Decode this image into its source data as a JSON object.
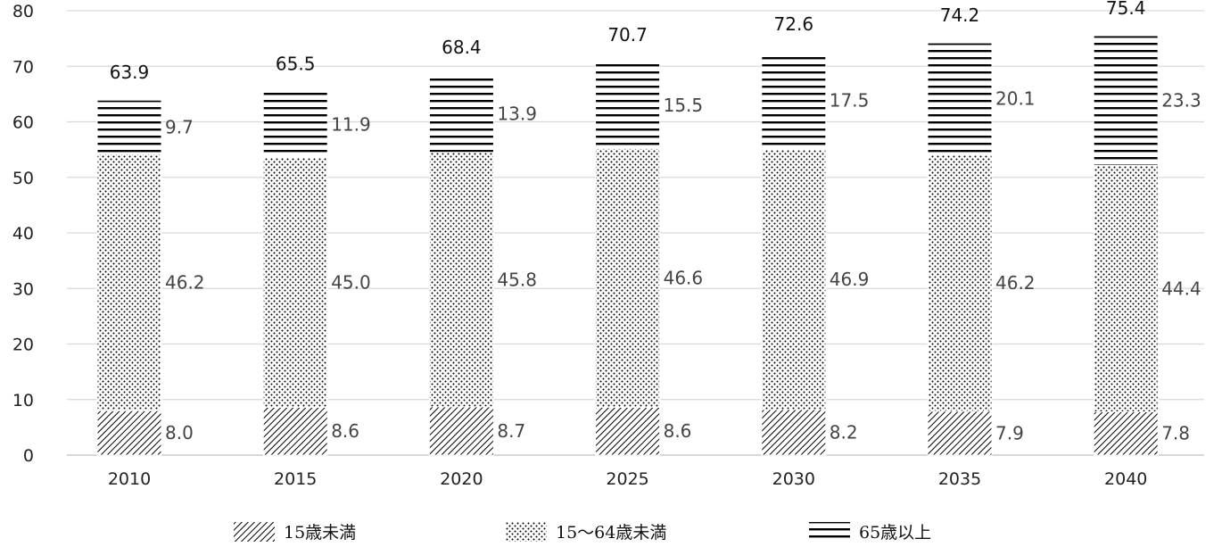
{
  "chart_data": {
    "type": "bar",
    "stacked": true,
    "categories": [
      "2010",
      "2015",
      "2020",
      "2025",
      "2030",
      "2035",
      "2040"
    ],
    "series": [
      {
        "name": "15歳未満",
        "pattern": "diagonal-hatch",
        "values": [
          8.0,
          8.6,
          8.7,
          8.6,
          8.2,
          7.9,
          7.8
        ],
        "labels": [
          "8.0",
          "8.6",
          "8.7",
          "8.6",
          "8.2",
          "7.9",
          "7.8"
        ]
      },
      {
        "name": "15～64歳未満",
        "pattern": "dots",
        "values": [
          46.2,
          45.0,
          45.8,
          46.6,
          46.9,
          46.2,
          44.4
        ],
        "labels": [
          "46.2",
          "45.0",
          "45.8",
          "46.6",
          "46.9",
          "46.2",
          "44.4"
        ]
      },
      {
        "name": "65歳以上",
        "pattern": "horizontal-lines",
        "values": [
          9.7,
          11.9,
          13.9,
          15.5,
          17.5,
          20.1,
          23.3
        ],
        "labels": [
          "9.7",
          "11.9",
          "13.9",
          "15.5",
          "17.5",
          "20.1",
          "23.3"
        ]
      }
    ],
    "totals": [
      63.9,
      65.5,
      68.4,
      70.7,
      72.6,
      74.2,
      75.4
    ],
    "total_labels": [
      "63.9",
      "65.5",
      "68.4",
      "70.7",
      "72.6",
      "74.2",
      "75.4"
    ],
    "ylim": [
      0,
      80
    ],
    "yticks": [
      "0",
      "10",
      "20",
      "30",
      "40",
      "50",
      "60",
      "70",
      "80"
    ],
    "ytick_values": [
      0,
      10,
      20,
      30,
      40,
      50,
      60,
      70,
      80
    ],
    "grid": true,
    "legend_position": "bottom",
    "colors": {
      "ink": "#000000",
      "grid": "#d9d9d9"
    }
  }
}
